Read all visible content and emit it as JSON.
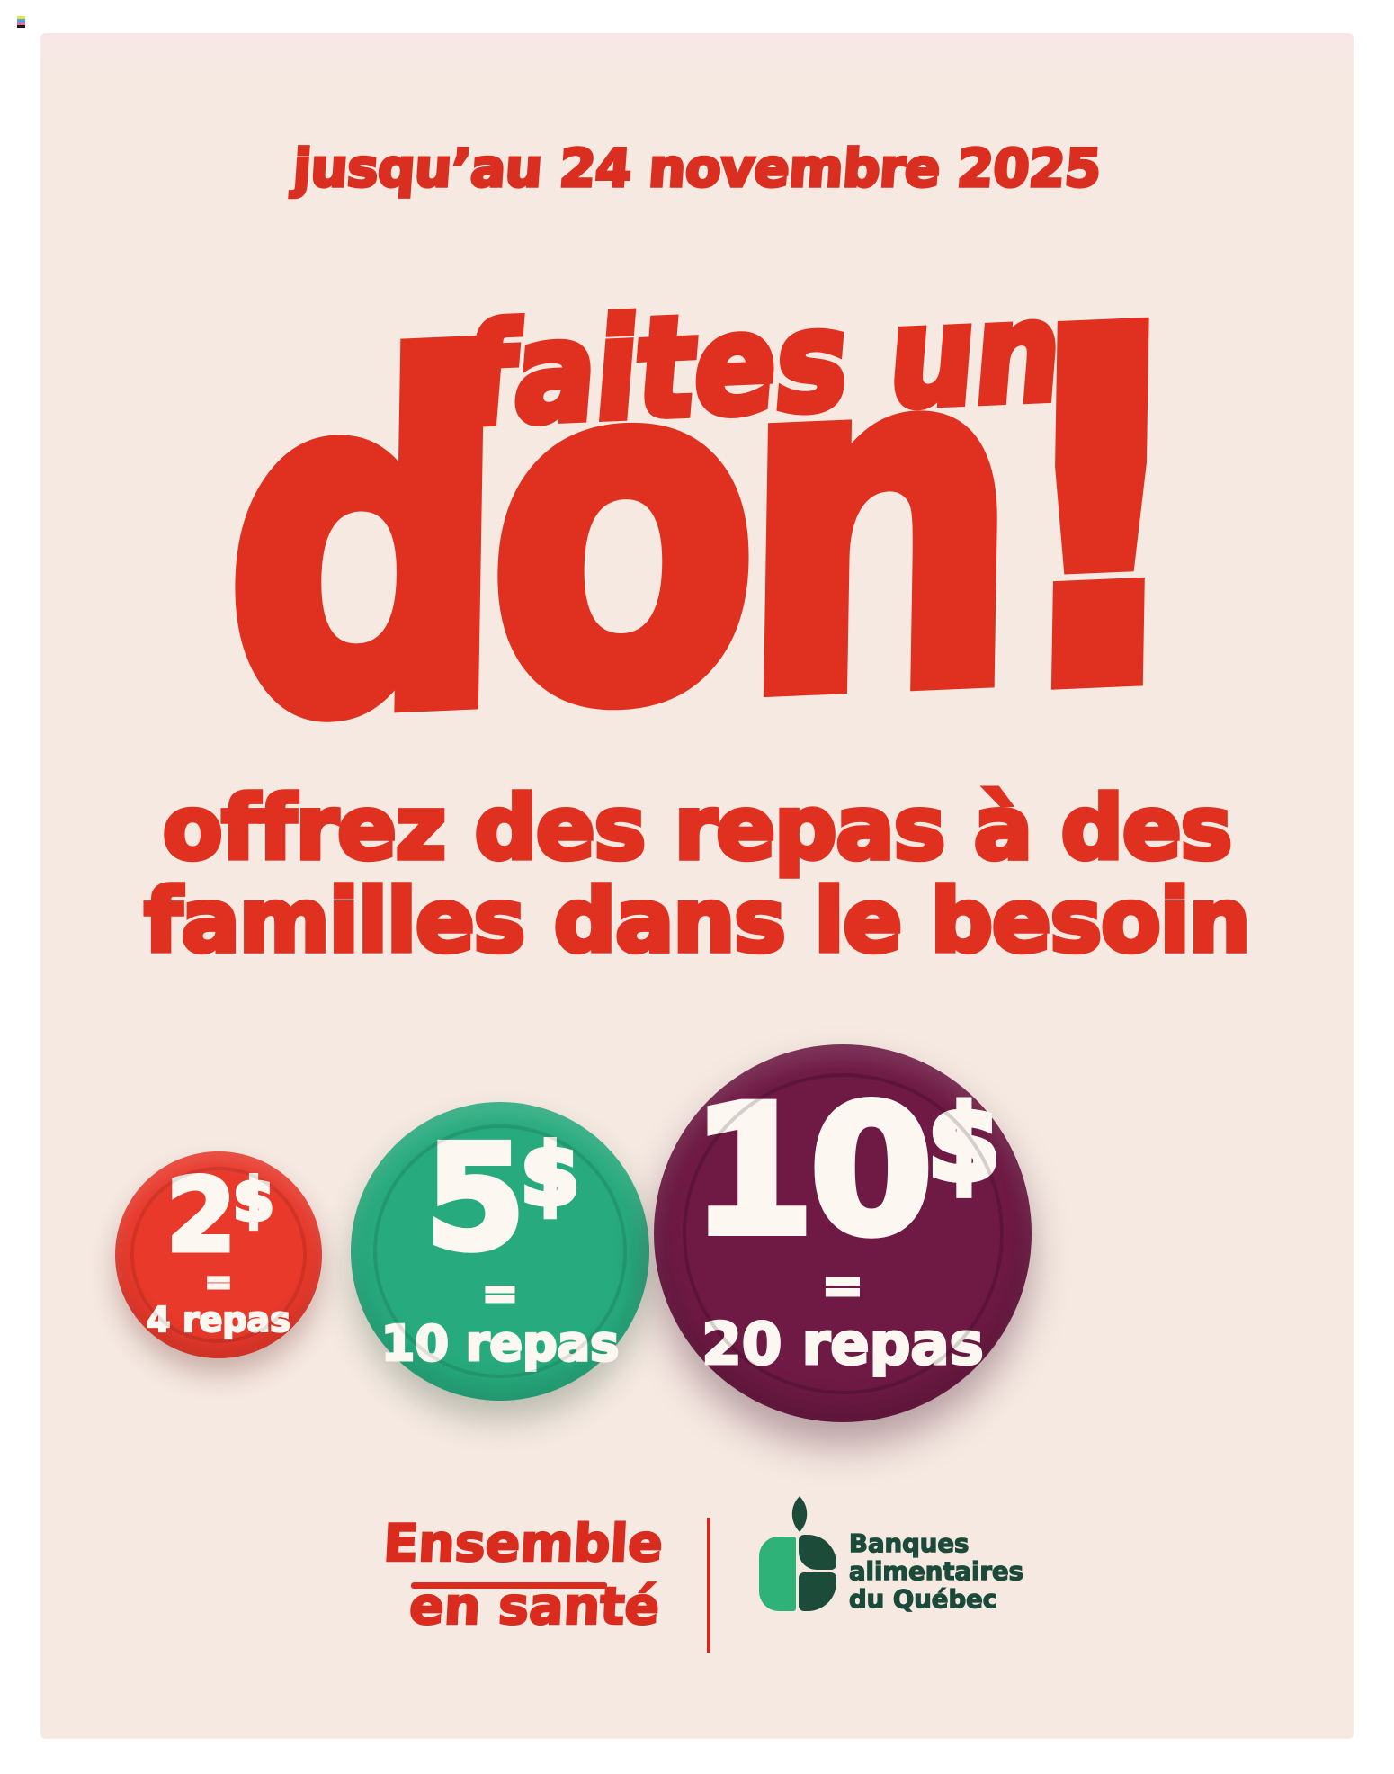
{
  "page": {
    "background_color": "#ffffff",
    "poster_background": "#f5e9e1",
    "accent_red": "#e0301f"
  },
  "print_mark": {
    "stripe_colors": [
      "#e8e33a",
      "#4aa7e0",
      "#ef66a8",
      "#1a1a1a"
    ]
  },
  "banner": {
    "text": "jusqu’au 24 novembre 2025"
  },
  "headline": {
    "line1": "faites un",
    "word": "don",
    "exclamation": "!"
  },
  "subtitle": {
    "line1": "offrez des repas à des",
    "line2": "familles dans le besoin"
  },
  "donation_coins": [
    {
      "amount_digits": "2",
      "currency": "$",
      "equals": "=",
      "meals": "4 repas",
      "color": "#e8392b"
    },
    {
      "amount_digits": "5",
      "currency": "$",
      "equals": "=",
      "meals": "10 repas",
      "color": "#27aa7d"
    },
    {
      "amount_digits": "10",
      "currency": "$",
      "equals": "=",
      "meals": "20 repas",
      "color": "#6e1a44"
    }
  ],
  "footer": {
    "brand_primary": {
      "line1": "Ensemble",
      "line2": "en santé",
      "color": "#d92c1e"
    },
    "brand_secondary": {
      "line1": "Banques",
      "line2": "alimentaires",
      "line3": "du Québec",
      "text_color": "#1c4a3a",
      "icon_light_green": "#2fb277",
      "icon_dark_green": "#1d4b3a"
    }
  }
}
